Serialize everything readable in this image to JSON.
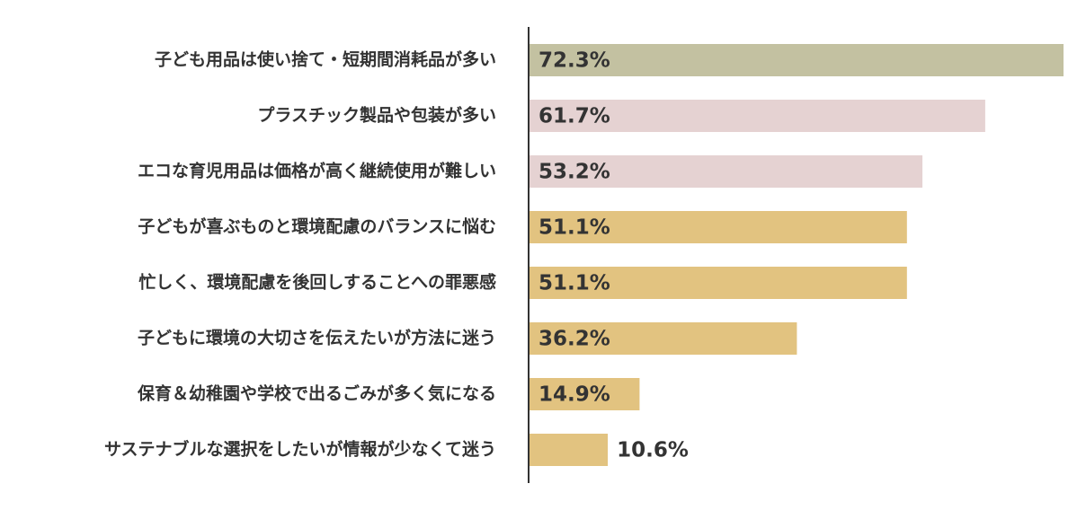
{
  "chart_data": {
    "type": "barh",
    "categories": [
      "子ども用品は使い捨て・短期間消耗品が多い",
      "プラスチック製品や包装が多い",
      "エコな育児用品は価格が高く継続使用が難しい",
      "子どもが喜ぶものと環境配慮のバランスに悩む",
      "忙しく、環境配慮を後回しすることへの罪悪感",
      "子どもに環境の大切さを伝えたいが方法に迷う",
      "保育＆幼稚園や学校で出るごみが多く気になる",
      "サステナブルな選択をしたいが情報が少なくて迷う"
    ],
    "values": [
      72.3,
      61.7,
      53.2,
      51.1,
      51.1,
      36.2,
      14.9,
      10.6
    ],
    "value_labels": [
      "72.3%",
      "61.7%",
      "53.2%",
      "51.1%",
      "51.1%",
      "36.2%",
      "14.9%",
      "10.6%"
    ],
    "colors": [
      "#c3c1a1",
      "#e5d2d2",
      "#e5d2d2",
      "#e2c380",
      "#e2c380",
      "#e2c380",
      "#e2c380",
      "#e2c380"
    ]
  }
}
